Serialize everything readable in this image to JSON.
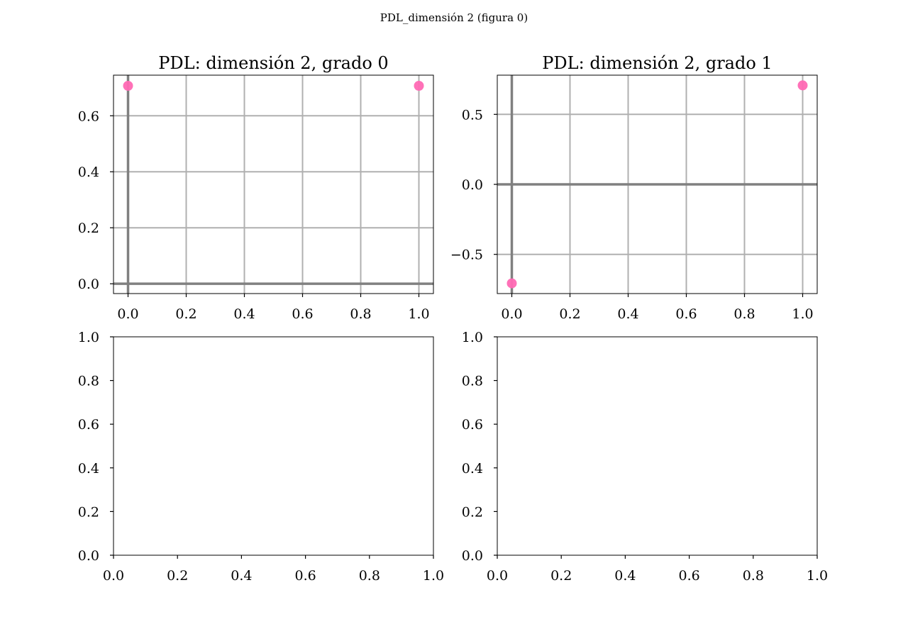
{
  "figure": {
    "suptitle": "PDL_dimensión 2 (figura 0)"
  },
  "chart_data": [
    {
      "type": "scatter",
      "title": "PDL: dimensión 2, grado 0",
      "xlabel": "",
      "ylabel": "",
      "xlim": [
        -0.05,
        1.05
      ],
      "ylim": [
        -0.035,
        0.745
      ],
      "xticks": [
        0.0,
        0.2,
        0.4,
        0.6,
        0.8,
        1.0
      ],
      "xtick_labels": [
        "0.0",
        "0.2",
        "0.4",
        "0.6",
        "0.8",
        "1.0"
      ],
      "yticks": [
        0.0,
        0.2,
        0.4,
        0.6
      ],
      "ytick_labels": [
        "0.0",
        "0.2",
        "0.4",
        "0.6"
      ],
      "grid": true,
      "zero_lines": true,
      "series": [
        {
          "x": [
            0.0,
            1.0
          ],
          "y": [
            0.707,
            0.707
          ],
          "color": "#ff69b4"
        }
      ]
    },
    {
      "type": "scatter",
      "title": "PDL: dimensión 2, grado 1",
      "xlabel": "",
      "ylabel": "",
      "xlim": [
        -0.05,
        1.05
      ],
      "ylim": [
        -0.78,
        0.78
      ],
      "xticks": [
        0.0,
        0.2,
        0.4,
        0.6,
        0.8,
        1.0
      ],
      "xtick_labels": [
        "0.0",
        "0.2",
        "0.4",
        "0.6",
        "0.8",
        "1.0"
      ],
      "yticks": [
        -0.5,
        0.0,
        0.5
      ],
      "ytick_labels": [
        "−0.5",
        "0.0",
        "0.5"
      ],
      "grid": true,
      "zero_lines": true,
      "series": [
        {
          "x": [
            0.0,
            1.0
          ],
          "y": [
            -0.707,
            0.707
          ],
          "color": "#ff69b4"
        }
      ]
    },
    {
      "type": "scatter",
      "title": "",
      "xlabel": "",
      "ylabel": "",
      "xlim": [
        0.0,
        1.0
      ],
      "ylim": [
        0.0,
        1.0
      ],
      "xticks": [
        0.0,
        0.2,
        0.4,
        0.6,
        0.8,
        1.0
      ],
      "xtick_labels": [
        "0.0",
        "0.2",
        "0.4",
        "0.6",
        "0.8",
        "1.0"
      ],
      "yticks": [
        0.0,
        0.2,
        0.4,
        0.6,
        0.8,
        1.0
      ],
      "ytick_labels": [
        "0.0",
        "0.2",
        "0.4",
        "0.6",
        "0.8",
        "1.0"
      ],
      "grid": false,
      "zero_lines": false,
      "series": []
    },
    {
      "type": "scatter",
      "title": "",
      "xlabel": "",
      "ylabel": "",
      "xlim": [
        0.0,
        1.0
      ],
      "ylim": [
        0.0,
        1.0
      ],
      "xticks": [
        0.0,
        0.2,
        0.4,
        0.6,
        0.8,
        1.0
      ],
      "xtick_labels": [
        "0.0",
        "0.2",
        "0.4",
        "0.6",
        "0.8",
        "1.0"
      ],
      "yticks": [
        0.0,
        0.2,
        0.4,
        0.6,
        0.8,
        1.0
      ],
      "ytick_labels": [
        "0.0",
        "0.2",
        "0.4",
        "0.6",
        "0.8",
        "1.0"
      ],
      "grid": false,
      "zero_lines": false,
      "series": []
    }
  ]
}
